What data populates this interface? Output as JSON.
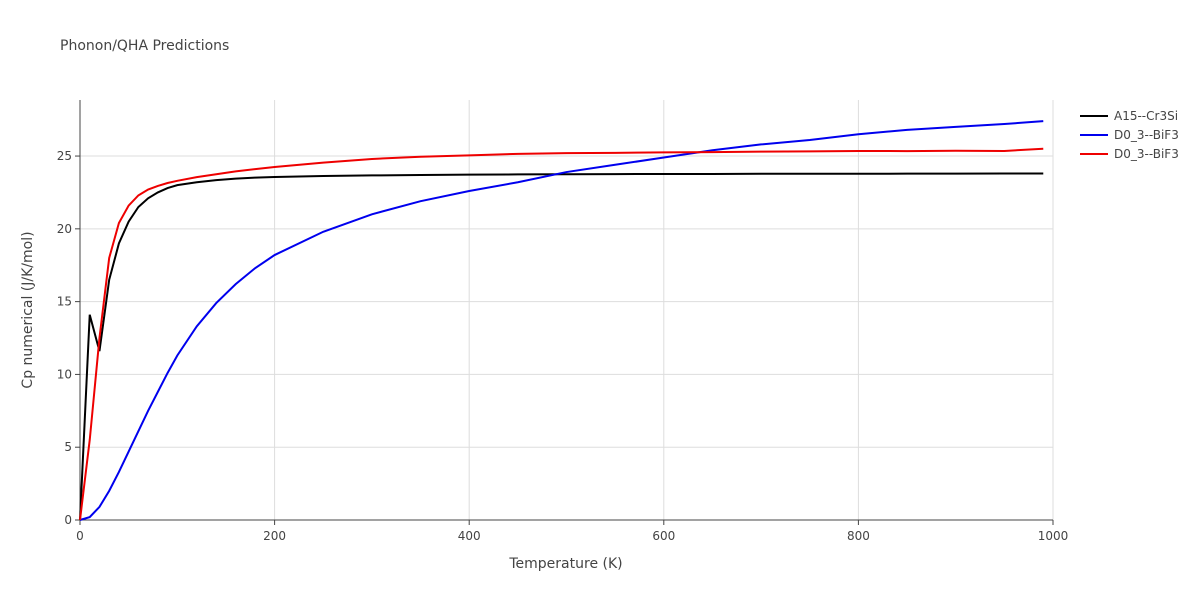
{
  "chart_data": {
    "type": "line",
    "title": "Phonon/QHA Predictions",
    "x_label": "Temperature (K)",
    "y_label": "Cp numerical (J/K/mol)",
    "x": [
      0,
      10,
      20,
      30,
      40,
      50,
      60,
      70,
      80,
      90,
      100,
      120,
      140,
      160,
      180,
      200,
      250,
      300,
      350,
      400,
      450,
      500,
      550,
      600,
      650,
      700,
      750,
      800,
      850,
      900,
      950,
      990
    ],
    "series": [
      {
        "name": "A15--Cr3Si",
        "color": "#000000",
        "values": [
          0,
          14.1,
          11.6,
          16.5,
          19.0,
          20.5,
          21.5,
          22.1,
          22.5,
          22.8,
          23.0,
          23.2,
          23.35,
          23.45,
          23.52,
          23.56,
          23.63,
          23.67,
          23.7,
          23.72,
          23.74,
          23.75,
          23.76,
          23.77,
          23.77,
          23.78,
          23.78,
          23.78,
          23.79,
          23.79,
          23.8,
          23.8
        ]
      },
      {
        "name": "D0_3--BiF3",
        "color": "#0000ee",
        "values": [
          0,
          0.2,
          0.9,
          2.0,
          3.3,
          4.7,
          6.1,
          7.5,
          8.8,
          10.1,
          11.3,
          13.3,
          14.9,
          16.2,
          17.3,
          18.2,
          19.8,
          21.0,
          21.9,
          22.6,
          23.2,
          23.9,
          24.4,
          24.9,
          25.4,
          25.8,
          26.1,
          26.5,
          26.8,
          27.0,
          27.2,
          27.4
        ]
      },
      {
        "name": "D0_3--BiF3",
        "color": "#ee0000",
        "values": [
          0,
          5.5,
          12.5,
          18.0,
          20.4,
          21.6,
          22.3,
          22.7,
          22.95,
          23.15,
          23.3,
          23.55,
          23.75,
          23.95,
          24.1,
          24.25,
          24.55,
          24.8,
          24.95,
          25.05,
          25.15,
          25.2,
          25.22,
          25.25,
          25.27,
          25.3,
          25.32,
          25.35,
          25.34,
          25.36,
          25.35,
          25.5
        ]
      }
    ],
    "xlim": [
      0,
      1000
    ],
    "ylim": [
      0,
      28.85
    ],
    "xticks": [
      0,
      200,
      400,
      600,
      800,
      1000
    ],
    "yticks": [
      0,
      5,
      10,
      15,
      20,
      25
    ],
    "grid": true,
    "legend": "right"
  }
}
